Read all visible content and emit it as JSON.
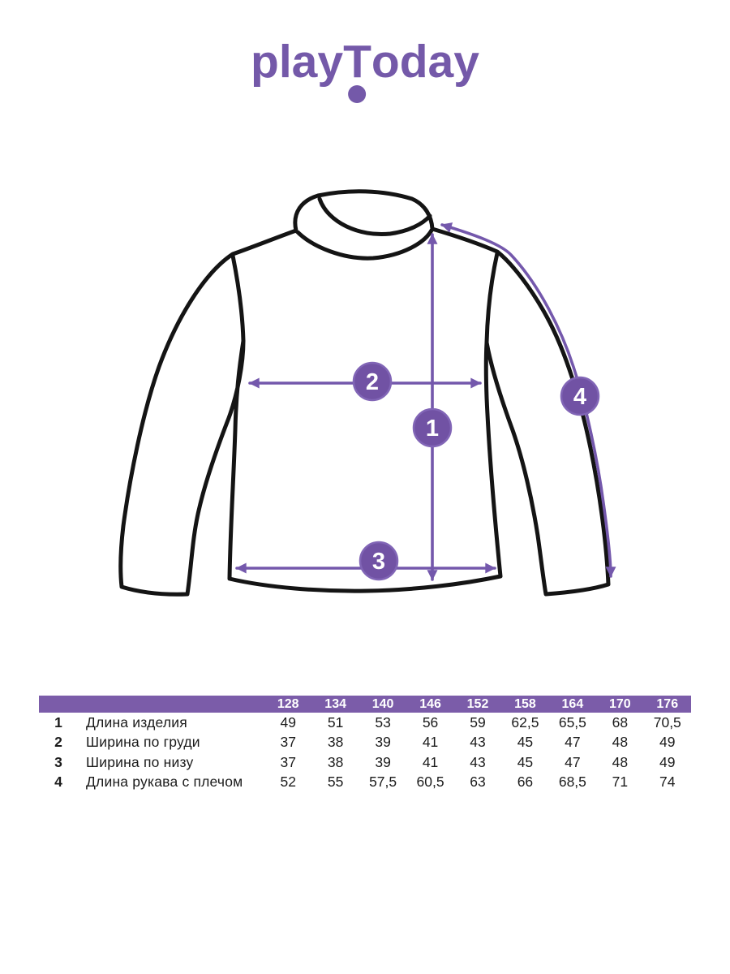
{
  "brand": {
    "pre": "play",
    "t": "T",
    "post": "oday"
  },
  "colors": {
    "purple_accent": "#7459A9",
    "table_header_bg": "#7B5CA9",
    "arrow_purple": "#7458AC",
    "outline_black": "#141414"
  },
  "diagram": {
    "garment": "turtleneck-sweater",
    "markers": [
      "1",
      "2",
      "3",
      "4"
    ]
  },
  "table": {
    "sizes": [
      "128",
      "134",
      "140",
      "146",
      "152",
      "158",
      "164",
      "170",
      "176"
    ],
    "rows": [
      {
        "num": "1",
        "label": "Длина изделия",
        "values": [
          "49",
          "51",
          "53",
          "56",
          "59",
          "62,5",
          "65,5",
          "68",
          "70,5"
        ]
      },
      {
        "num": "2",
        "label": "Ширина по груди",
        "values": [
          "37",
          "38",
          "39",
          "41",
          "43",
          "45",
          "47",
          "48",
          "49"
        ]
      },
      {
        "num": "3",
        "label": "Ширина по низу",
        "values": [
          "37",
          "38",
          "39",
          "41",
          "43",
          "45",
          "47",
          "48",
          "49"
        ]
      },
      {
        "num": "4",
        "label": "Длина рукава с плечом",
        "values": [
          "52",
          "55",
          "57,5",
          "60,5",
          "63",
          "66",
          "68,5",
          "71",
          "74"
        ]
      }
    ]
  }
}
